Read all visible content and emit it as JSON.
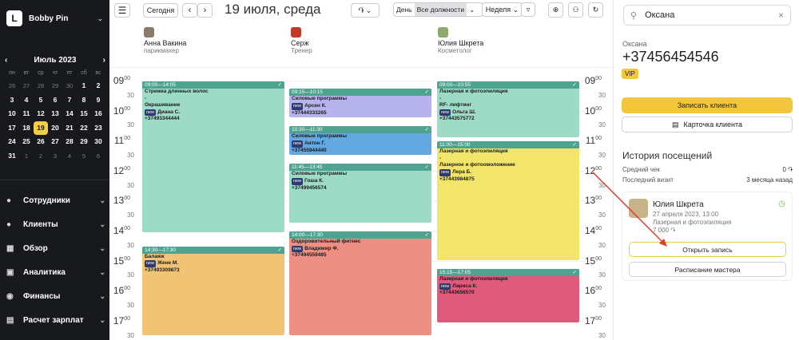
{
  "brand": {
    "name": "Bobby Pin",
    "logo": "L"
  },
  "mini": {
    "month": "Июль 2023",
    "weekdays": [
      "пн",
      "вт",
      "ср",
      "чт",
      "пт",
      "сб",
      "вс"
    ],
    "days": [
      [
        "26",
        "27",
        "28",
        "29",
        "30",
        "1",
        "2"
      ],
      [
        "3",
        "4",
        "5",
        "6",
        "7",
        "8",
        "9"
      ],
      [
        "10",
        "11",
        "12",
        "13",
        "14",
        "15",
        "16"
      ],
      [
        "17",
        "18",
        "19",
        "20",
        "21",
        "22",
        "23"
      ],
      [
        "24",
        "25",
        "26",
        "27",
        "28",
        "29",
        "30"
      ],
      [
        "31",
        "1",
        "2",
        "3",
        "4",
        "5",
        "6"
      ]
    ]
  },
  "nav": [
    {
      "label": "Сотрудники",
      "icon": "users-icon"
    },
    {
      "label": "Клиенты",
      "icon": "clients-icon"
    },
    {
      "label": "Обзор",
      "icon": "overview-icon"
    },
    {
      "label": "Аналитика",
      "icon": "analytics-icon"
    },
    {
      "label": "Финансы",
      "icon": "finance-icon"
    },
    {
      "label": "Расчет зарплат",
      "icon": "payroll-icon"
    }
  ],
  "toolbar": {
    "today": "Сегодня",
    "date_title": "19 июля, среда",
    "currency": "֏",
    "day": "День",
    "positions": "Все должности",
    "week": "Неделя"
  },
  "staff": [
    {
      "name": "Анна Вакина",
      "role": "парикмахер"
    },
    {
      "name": "Серж",
      "role": "Тренер"
    },
    {
      "name": "Юлия Шкрета",
      "role": "Косметолог"
    }
  ],
  "hours": [
    "09",
    "10",
    "11",
    "12",
    "13",
    "14",
    "15",
    "16",
    "17"
  ],
  "events": [
    {
      "col": 0,
      "time": "09:00—14:05",
      "lines": [
        "Стрижка длинных волос",
        "-",
        "Окрашивание"
      ],
      "new": true,
      "client": "Диана С.",
      "phone": "+37493344444",
      "bar": "#4ea391",
      "bg": "#9ddbc7"
    },
    {
      "col": 0,
      "time": "14:30—17:30",
      "lines": [
        "Балаяж"
      ],
      "new": true,
      "client": "Жене М.",
      "phone": "+37493309873",
      "bar": "#4ea391",
      "bg": "#f1c475"
    },
    {
      "col": 1,
      "time": "09:15—10:15",
      "lines": [
        "Силовые программы"
      ],
      "new": true,
      "client": "Арсен К.",
      "phone": "+37444333265",
      "bar": "#4ea391",
      "bg": "#b7b3ec"
    },
    {
      "col": 1,
      "time": "10:30—11:30",
      "lines": [
        "Силовые программы"
      ],
      "new": true,
      "client": "Антон Г.",
      "phone": "+37455944440",
      "bar": "#4ea391",
      "bg": "#63a9e0"
    },
    {
      "col": 1,
      "time": "11:45—13:45",
      "lines": [
        "Силовые программы"
      ],
      "new": true,
      "client": "Гоша К.",
      "phone": "+37499456574",
      "bar": "#4ea391",
      "bg": "#9ddbc7"
    },
    {
      "col": 1,
      "time": "14:00—17:30",
      "lines": [
        "Оздоровительный фитнес"
      ],
      "new": true,
      "client": "Владимир Ф.",
      "phone": "+37494559485",
      "bar": "#4ea391",
      "bg": "#ee8f84"
    },
    {
      "col": 2,
      "time": "09:00—10:55",
      "lines": [
        "Лазерная и фотоэпиляция",
        "-",
        "RF- лифтинг"
      ],
      "new": true,
      "client": "Ольга Ш.",
      "phone": "+37443575772",
      "bar": "#4ea391",
      "bg": "#9ddbc7"
    },
    {
      "col": 2,
      "time": "11:00—15:00",
      "lines": [
        "Лазерная и фотоэпиляция",
        "-",
        "Лазерное и фотоомоложение"
      ],
      "new": true,
      "client": "Лера Б.",
      "phone": "+37443984875",
      "bar": "#4ea391",
      "bg": "#f3e56a"
    },
    {
      "col": 2,
      "time": "15:15—17:05",
      "lines": [
        "Лазерная и фотоэпиляция"
      ],
      "new": true,
      "client": "Лариса К.",
      "phone": "+37443656570",
      "bar": "#4ea391",
      "bg": "#e05a7c"
    }
  ],
  "panel": {
    "search": "Оксана",
    "name": "Оксана",
    "phone": "+37456454546",
    "vip": "VIP",
    "book": "Записать клиента",
    "card": "Карточка клиента",
    "history_title": "История посещений",
    "avg_label": "Средний чек",
    "avg_value": "0 ֏",
    "last_label": "Последний визит",
    "last_value": "3 месяца назад",
    "visit": {
      "master": "Юлия Шкрета",
      "date": "27 апреля 2023, 13:00",
      "service": "Лазерная и фотоэпиляция",
      "price": "7 000 ֏",
      "open": "Открыть запись",
      "schedule": "Расписание мастера"
    }
  }
}
